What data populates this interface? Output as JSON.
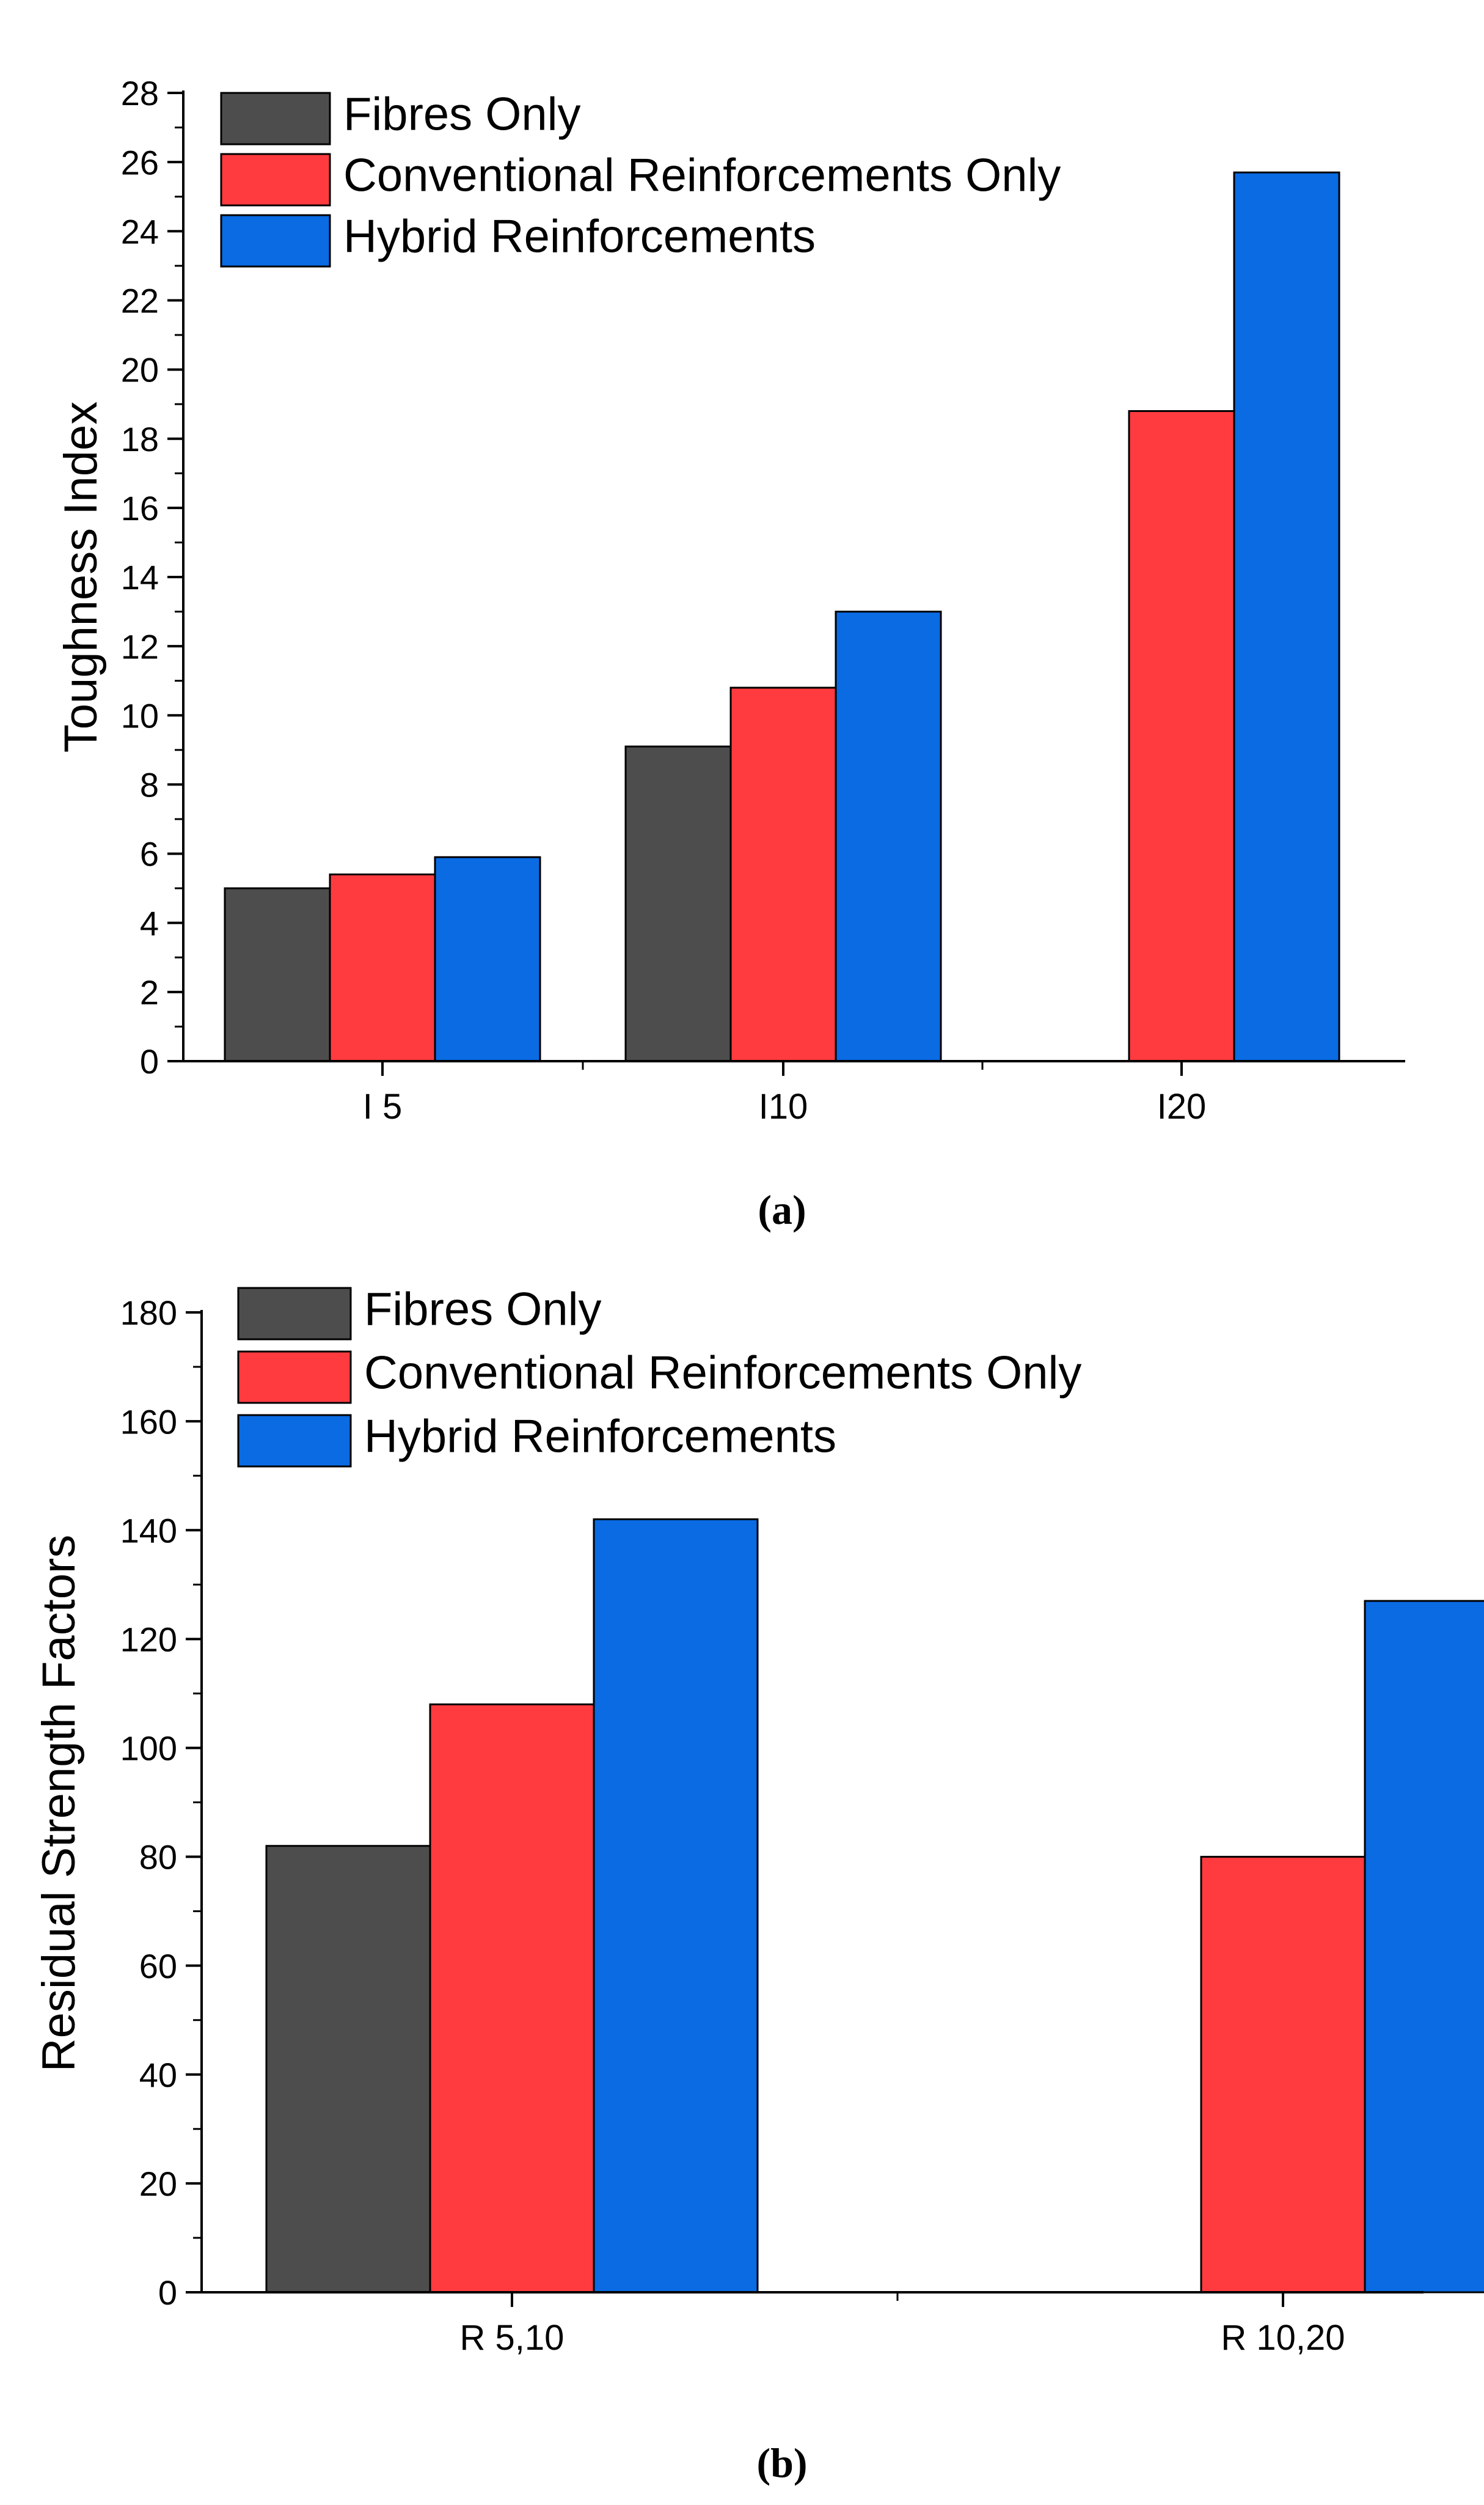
{
  "colors": {
    "fibres": "#4d4d4d",
    "conventional": "#ff3b3f",
    "hybrid": "#0a6be3",
    "axis": "#000000"
  },
  "chart_data": [
    {
      "id": "a",
      "type": "bar",
      "caption": "(a)",
      "title": "",
      "xlabel": "",
      "ylabel": "Toughness Index",
      "categories": [
        "I 5",
        "I10",
        "I20"
      ],
      "series": [
        {
          "name": "Fibres Only",
          "color_key": "fibres",
          "values": [
            5.0,
            9.1,
            null
          ]
        },
        {
          "name": "Conventional Reinforcements Only",
          "color_key": "conventional",
          "values": [
            5.4,
            10.8,
            18.8
          ]
        },
        {
          "name": "Hybrid Reinforcements",
          "color_key": "hybrid",
          "values": [
            5.9,
            13.0,
            25.7
          ]
        }
      ],
      "ylim": [
        0,
        28
      ],
      "yticks": [
        0,
        2,
        4,
        6,
        8,
        10,
        12,
        14,
        16,
        18,
        20,
        22,
        24,
        26,
        28
      ],
      "legend": "top-left",
      "grid": false
    },
    {
      "id": "b",
      "type": "bar",
      "caption": "(b)",
      "title": "",
      "xlabel": "",
      "ylabel": "Residual Strength Factors",
      "categories": [
        "R 5,10",
        "R 10,20"
      ],
      "series": [
        {
          "name": "Fibres Only",
          "color_key": "fibres",
          "values": [
            82,
            null
          ]
        },
        {
          "name": "Conventional Reinforcements Only",
          "color_key": "conventional",
          "values": [
            108,
            80
          ]
        },
        {
          "name": "Hybrid Reinforcements",
          "color_key": "hybrid",
          "values": [
            142,
            127
          ]
        }
      ],
      "ylim": [
        0,
        180
      ],
      "yticks": [
        0,
        20,
        40,
        60,
        80,
        100,
        120,
        140,
        160,
        180
      ],
      "legend": "top-left",
      "grid": false
    }
  ]
}
